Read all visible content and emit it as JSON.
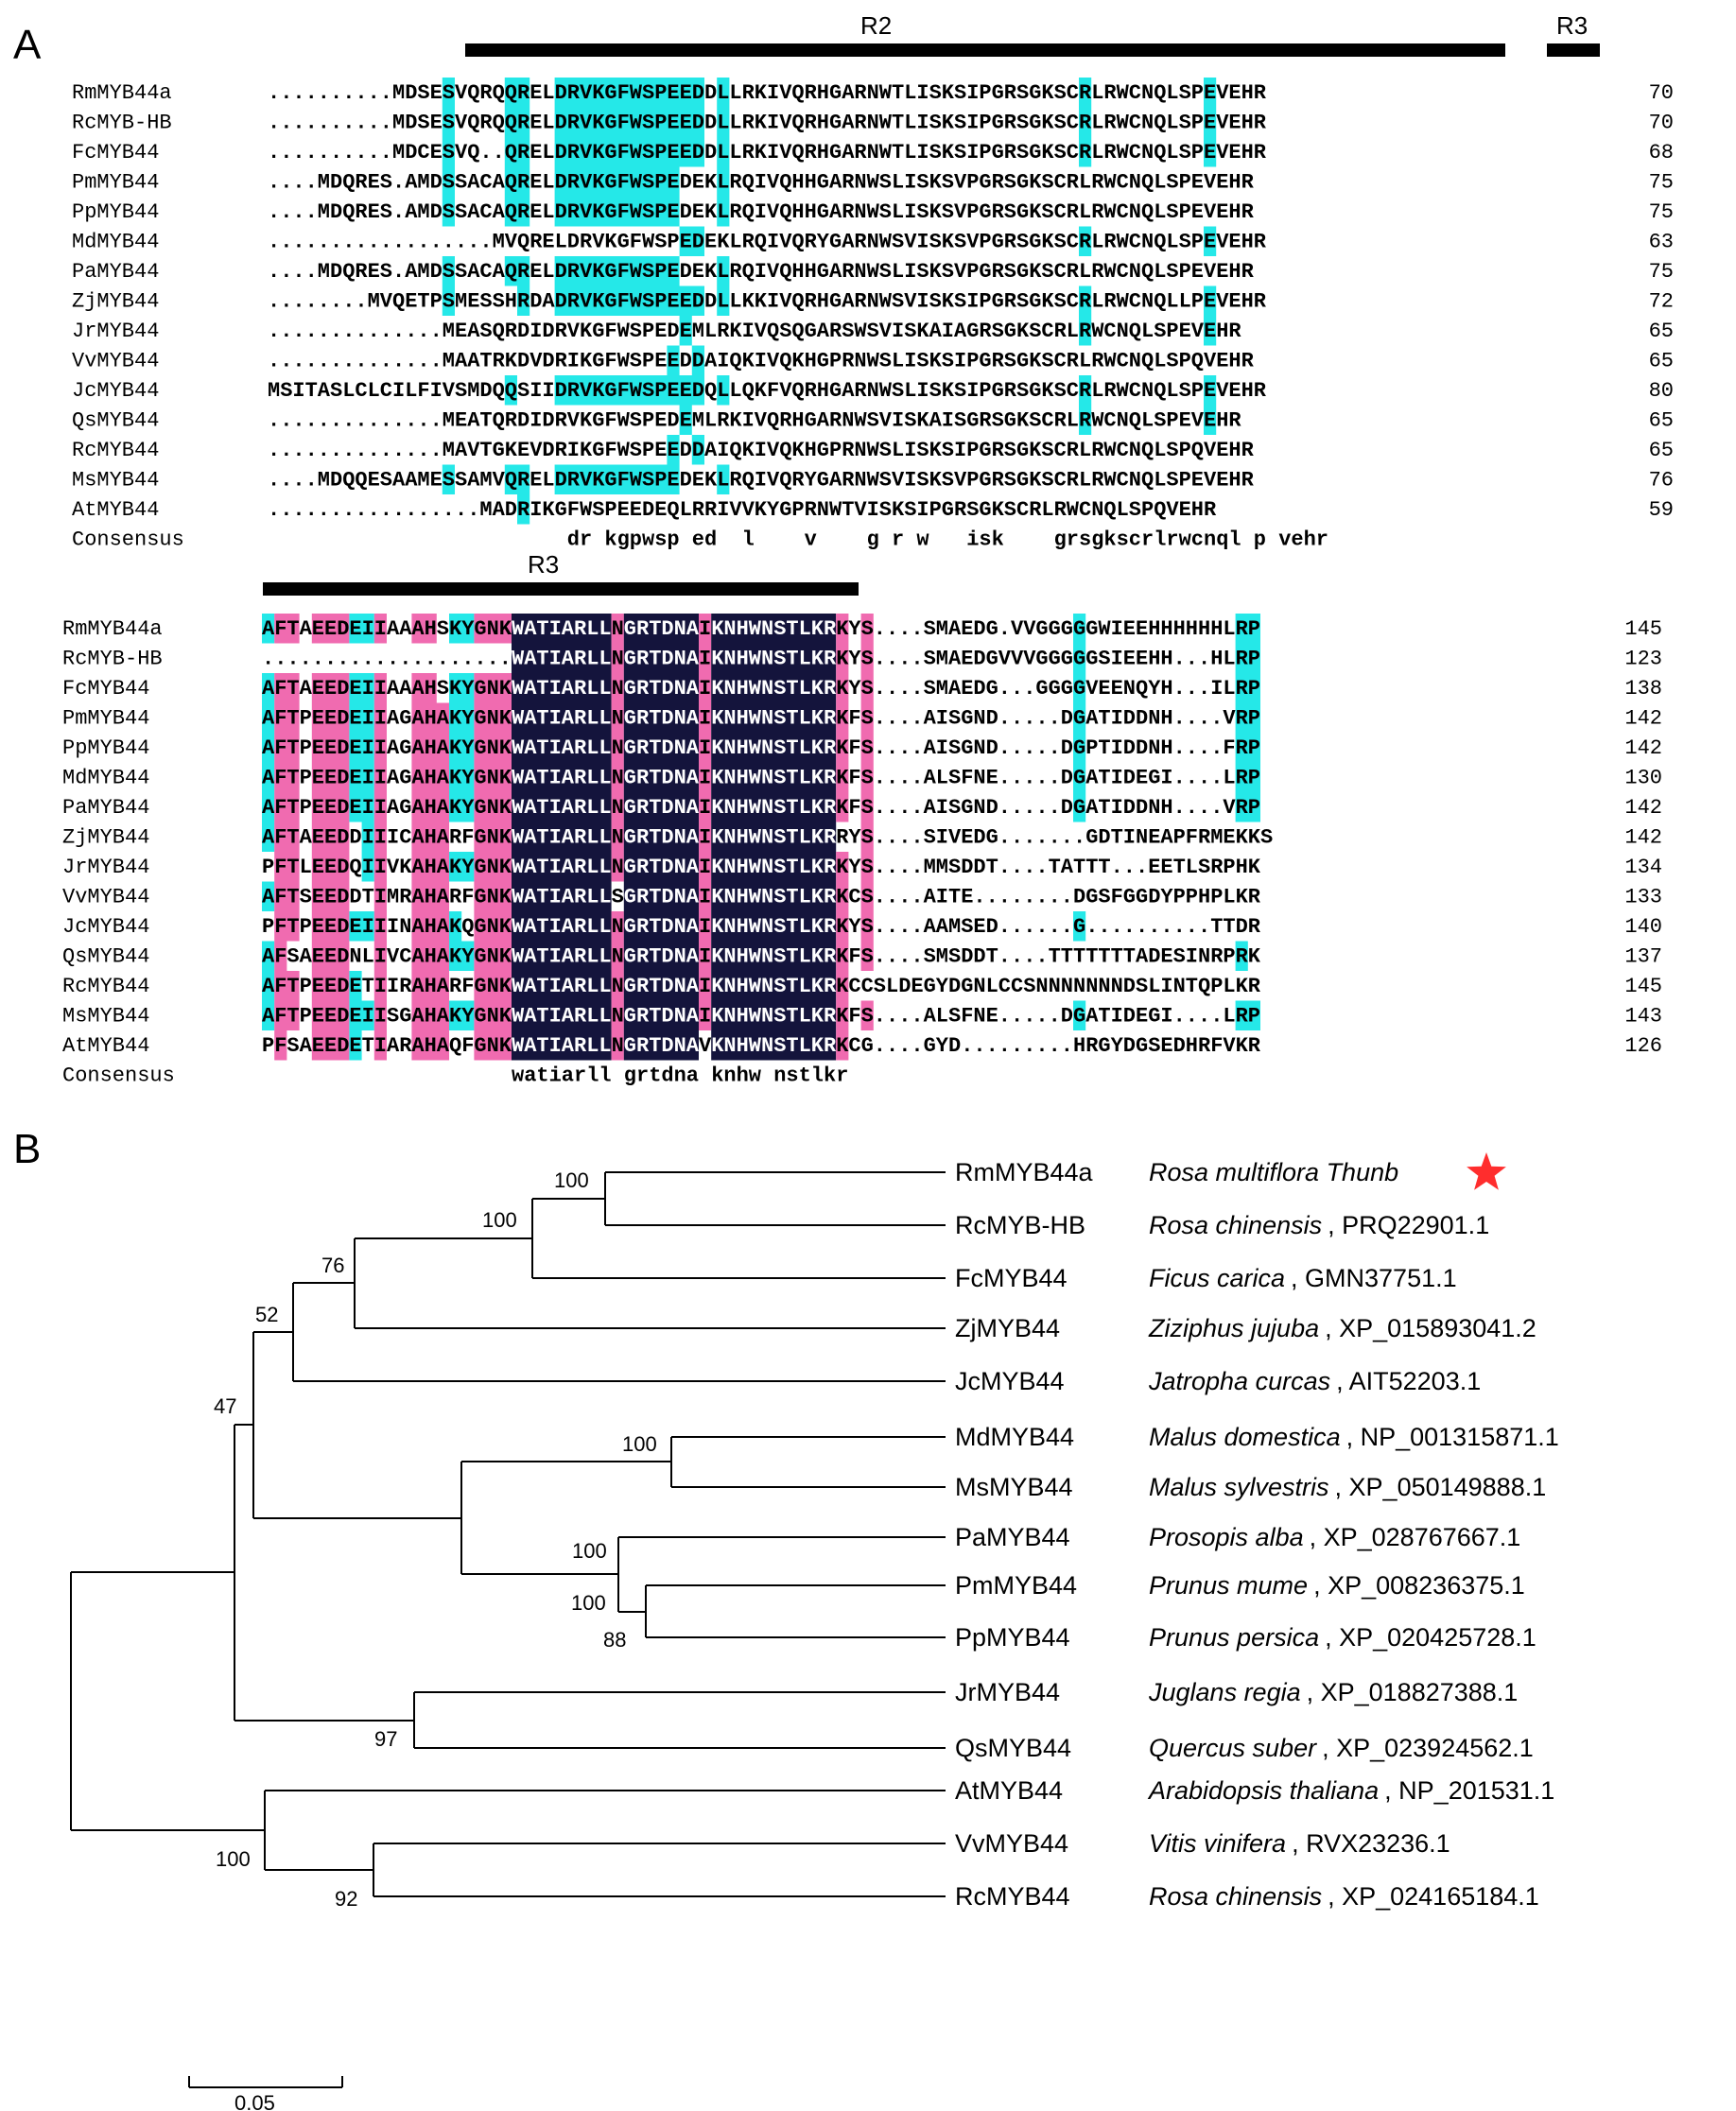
{
  "panels": {
    "a": "A",
    "b": "B"
  },
  "colors": {
    "dark": "#14143c",
    "pink": "#f06bb0",
    "cyan": "#25e8e8"
  },
  "alignment_blocks": [
    {
      "regions": [
        {
          "label": "R2"
        },
        {
          "label": "R3"
        }
      ],
      "rows": [
        {
          "name": "RmMYB44a",
          "seq": "..........MDSESVQRQQRELDRVKGFWSPEEDDLLRKIVQRHGARNWTLISKSIPGRSGKSCRLRWCNQLSPEVEHR",
          "num": "70"
        },
        {
          "name": "RcMYB-HB",
          "seq": "..........MDSESVQRQQRELDRVKGFWSPEEDDLLRKIVQRHGARNWTLISKSIPGRSGKSCRLRWCNQLSPEVEHR",
          "num": "70"
        },
        {
          "name": "FcMYB44",
          "seq": "..........MDCESVQ..QRELDRVKGFWSPEEDDLLRKIVQRHGARNWTLISKSIPGRSGKSCRLRWCNQLSPEVEHR",
          "num": "68"
        },
        {
          "name": "PmMYB44",
          "seq": "....MDQRES.AMDSSACAQRELDRVKGFWSPEDEKLRQIVQHHGARNWSLISKSVPGRSGKSCRLRWCNQLSPEVEHR",
          "num": "75"
        },
        {
          "name": "PpMYB44",
          "seq": "....MDQRES.AMDSSACAQRELDRVKGFWSPEDEKLRQIVQHHGARNWSLISKSVPGRSGKSCRLRWCNQLSPEVEHR",
          "num": "75"
        },
        {
          "name": "MdMYB44",
          "seq": "..................MVQRELDRVKGFWSPEDEKLRQIVQRYGARNWSVISKSVPGRSGKSCRLRWCNQLSPEVEHR",
          "num": "63"
        },
        {
          "name": "PaMYB44",
          "seq": "....MDQRES.AMDSSACAQRELDRVKGFWSPEDEKLRQIVQHHGARNWSLISKSVPGRSGKSCRLRWCNQLSPEVEHR",
          "num": "75"
        },
        {
          "name": "ZjMYB44",
          "seq": "........MVQETPSMESSHRDADRVKGFWSPEEDDLLKKIVQRHGARNWSVISKSIPGRSGKSCRLRWCNQLLPEVEHR",
          "num": "72"
        },
        {
          "name": "JrMYB44",
          "seq": "..............MEASQRDIDRVKGFWSPEDEMLRKIVQSQGARSWSVISKAIAGRSGKSCRLRWCNQLSPEVEHR",
          "num": "65"
        },
        {
          "name": "VvMYB44",
          "seq": "..............MAATRKDVDRIKGFWSPEEDDAIQKIVQKHGPRNWSLISKSIPGRSGKSCRLRWCNQLSPQVEHR",
          "num": "65"
        },
        {
          "name": "JcMYB44",
          "seq": "MSITASLCLCILFIVSMDQQSIIDRVKGFWSPEEDQLLQKFVQRHGARNWSLISKSIPGRSGKSCRLRWCNQLSPEVEHR",
          "num": "80"
        },
        {
          "name": "QsMYB44",
          "seq": "..............MEATQRDIDRVKGFWSPEDEMLRKIVQRHGARNWSVISKAISGRSGKSCRLRWCNQLSPEVEHR",
          "num": "65"
        },
        {
          "name": "RcMYB44",
          "seq": "..............MAVTGKEVDRIKGFWSPEEDDAIQKIVQKHGPRNWSLISKSIPGRSGKSCRLRWCNQLSPQVEHR",
          "num": "65"
        },
        {
          "name": "MsMYB44",
          "seq": "....MDQQESAAMESSAMVQRELDRVKGFWSPEDEKLRQIVQRYGARNWSVISKSVPGRSGKSCRLRWCNQLSPEVEHR",
          "num": "76"
        },
        {
          "name": "AtMYB44",
          "seq": ".................MADRIKGFWSPEEDEQLRRIVVKYGPRNWTVISKSIPGRSGKSCRLRWCNQLSPQVEHR",
          "num": "59"
        }
      ],
      "consensus_label": "Consensus",
      "consensus": "                        dr kgpwsp ed  l    v    g r w   isk    grsgkscrlrwcnql p vehr"
    },
    {
      "regions": [
        {
          "label": "R3"
        }
      ],
      "rows": [
        {
          "name": "RmMYB44a",
          "seq": "AFTAEEDEIIAAAHSKYGNKWATIARLLNGRTDNAIKNHWNSTLKRKYS....SMAEDG.VVGGGGGWIEEHHHHHHLRP",
          "num": "145"
        },
        {
          "name": "RcMYB-HB",
          "seq": "....................WATIARLLNGRTDNAIKNHWNSTLKRKYS....SMAEDGVVVGGGGGSIEEHH...HLRP",
          "num": "123"
        },
        {
          "name": "FcMYB44",
          "seq": "AFTAEEDEIIAAAHSKYGNKWATIARLLNGRTDNAIKNHWNSTLKRKYS....SMAEDG...GGGGVEENQYH...ILRP",
          "num": "138"
        },
        {
          "name": "PmMYB44",
          "seq": "AFTPEEDEIIAGAHAKYGNKWATIARLLNGRTDNAIKNHWNSTLKRKFS....AISGND.....DGATIDDNH....VRP",
          "num": "142"
        },
        {
          "name": "PpMYB44",
          "seq": "AFTPEEDEIIAGAHAKYGNKWATIARLLNGRTDNAIKNHWNSTLKRKFS....AISGND.....DGPTIDDNH....FRP",
          "num": "142"
        },
        {
          "name": "MdMYB44",
          "seq": "AFTPEEDEIIAGAHAKYGNKWATIARLLNGRTDNAIKNHWNSTLKRKFS....ALSFNE.....DGATIDEGI....LRP",
          "num": "130"
        },
        {
          "name": "PaMYB44",
          "seq": "AFTPEEDEIIAGAHAKYGNKWATIARLLNGRTDNAIKNHWNSTLKRKFS....AISGND.....DGATIDDNH....VRP",
          "num": "142"
        },
        {
          "name": "ZjMYB44",
          "seq": "AFTAEEDDIIICAHARFGNKWATIARLLNGRTDNAIKNHWNSTLKRRYS....SIVEDG.......GDTINEAPFRMEKKS",
          "num": "142"
        },
        {
          "name": "JrMYB44",
          "seq": "PFTLEEDQIIVKAHAKYGNKWATIARLLNGRTDNAIKNHWNSTLKRKYS....MMSDDT....TATTT...EETLSRPHK",
          "num": "134"
        },
        {
          "name": "VvMYB44",
          "seq": "AFTSEEDDTIMRAHARFGNKWATIARLLSGRTDNAIKNHWNSTLKRKCS....AITE........DGSFGGDYPPHPLKR",
          "num": "133"
        },
        {
          "name": "JcMYB44",
          "seq": "PFTPEEDEIIINAHAKQGNKWATIARLLNGRTDNAIKNHWNSTLKRKYS....AAMSED......G..........TTDR",
          "num": "140"
        },
        {
          "name": "QsMYB44",
          "seq": "AFSAEEDNLIVCAHAKYGNKWATIARLLNGRTDNAIKNHWNSTLKRKFS....SMSDDT....TTTTTTTADESINRPRK",
          "num": "137"
        },
        {
          "name": "RcMYB44",
          "seq": "AFTPEEDETIIRAHARFGNKWATIARLLNGRTDNAIKNHWNSTLKRKCCSLDEGYDGNLCCSNNNNNNNDSLINTQPLKR",
          "num": "145"
        },
        {
          "name": "MsMYB44",
          "seq": "AFTPEEDEIISGAHAKYGNKWATIARLLNGRTDNAIKNHWNSTLKRKFS....ALSFNE.....DGATIDEGI....LRP",
          "num": "143"
        },
        {
          "name": "AtMYB44",
          "seq": "PFSAEEDETIARAHAQFGNKWATIARLLNGRTDNAVKNHWNSTLKRKCG....GYD.........HRGYDGSEDHRFVKR",
          "num": "126"
        }
      ],
      "consensus_label": "Consensus",
      "consensus": "                    watiarll grtdna knhw nstlkr"
    }
  ],
  "tree": {
    "leaves": [
      {
        "name": "RmMYB44a",
        "species": "Rosa multiflora Thunb",
        "accession": "",
        "star": true
      },
      {
        "name": "RcMYB-HB",
        "species": "Rosa chinensis",
        "accession": "PRQ22901.1"
      },
      {
        "name": "FcMYB44",
        "species": "Ficus carica",
        "accession": "GMN37751.1"
      },
      {
        "name": "ZjMYB44",
        "species": "Ziziphus jujuba",
        "accession": "XP_015893041.2"
      },
      {
        "name": "JcMYB44",
        "species": "Jatropha curcas",
        "accession": "AIT52203.1"
      },
      {
        "name": "MdMYB44",
        "species": "Malus domestica",
        "accession": "NP_001315871.1"
      },
      {
        "name": "MsMYB44",
        "species": "Malus sylvestris",
        "accession": "XP_050149888.1"
      },
      {
        "name": "PaMYB44",
        "species": "Prosopis alba",
        "accession": "XP_028767667.1"
      },
      {
        "name": "PmMYB44",
        "species": "Prunus mume",
        "accession": "XP_008236375.1"
      },
      {
        "name": "PpMYB44",
        "species": "Prunus persica",
        "accession": "XP_020425728.1"
      },
      {
        "name": "JrMYB44",
        "species": "Juglans regia",
        "accession": "XP_018827388.1"
      },
      {
        "name": "QsMYB44",
        "species": "Quercus suber",
        "accession": "XP_023924562.1"
      },
      {
        "name": "AtMYB44",
        "species": "Arabidopsis thaliana",
        "accession": "NP_201531.1"
      },
      {
        "name": "VvMYB44",
        "species": "Vitis vinifera",
        "accession": "RVX23236.1"
      },
      {
        "name": "RcMYB44",
        "species": "Rosa chinensis",
        "accession": "XP_024165184.1"
      }
    ],
    "bootstrap": [
      "100",
      "100",
      "76",
      "52",
      "47",
      "100",
      "100",
      "100",
      "88",
      "97",
      "100",
      "92"
    ],
    "scale_label": "0.05"
  }
}
